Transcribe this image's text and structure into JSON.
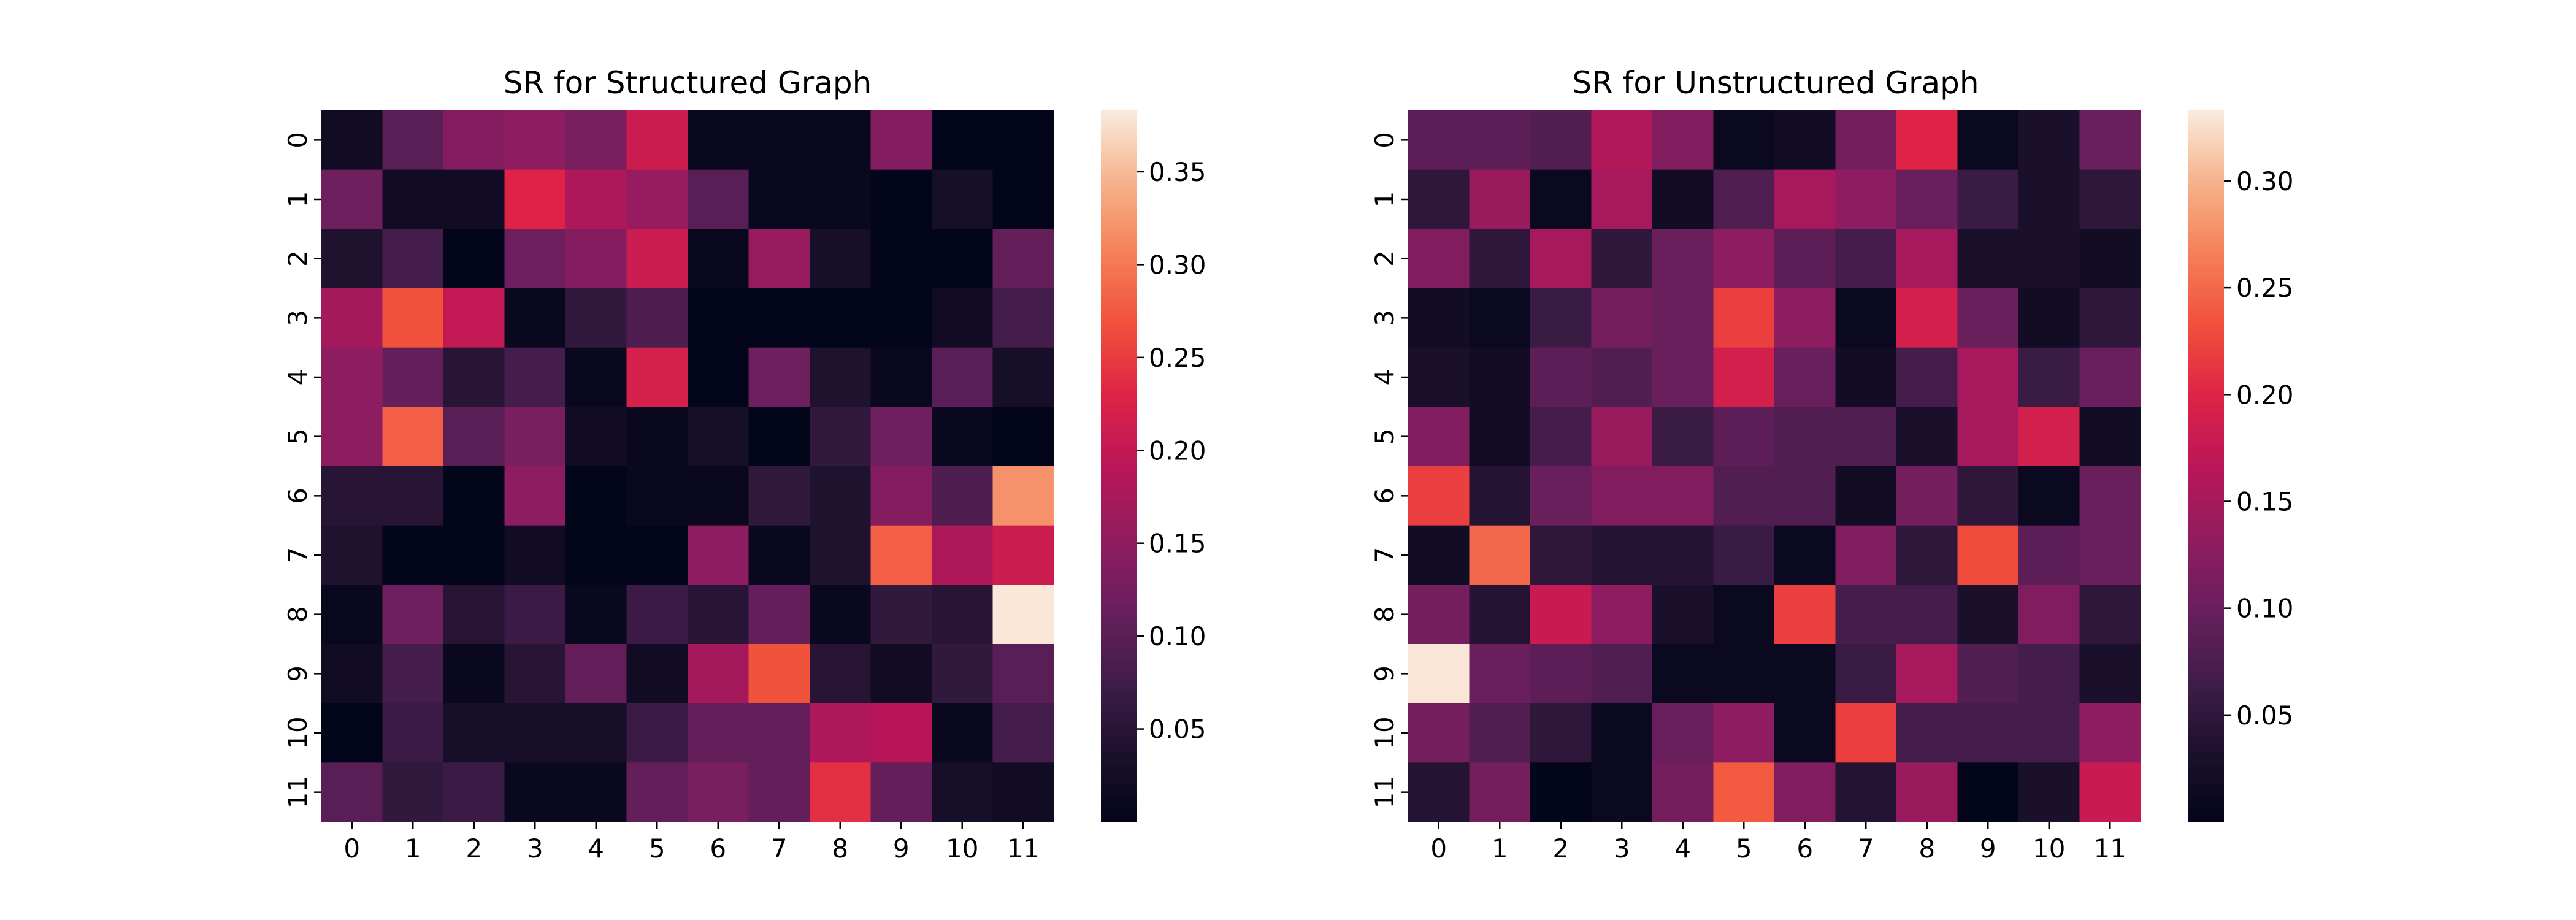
{
  "chart_data": [
    {
      "type": "heatmap",
      "title": "SR for Structured Graph",
      "xlabel": "",
      "ylabel": "",
      "x_categories": [
        "0",
        "1",
        "2",
        "3",
        "4",
        "5",
        "6",
        "7",
        "8",
        "9",
        "10",
        "11"
      ],
      "y_categories": [
        "0",
        "1",
        "2",
        "3",
        "4",
        "5",
        "6",
        "7",
        "8",
        "9",
        "10",
        "11"
      ],
      "colorbar": {
        "min": 0.0,
        "max": 0.383,
        "ticks": [
          0.05,
          0.1,
          0.15,
          0.2,
          0.25,
          0.3,
          0.35
        ],
        "tick_labels": [
          "0.05",
          "0.10",
          "0.15",
          "0.20",
          "0.25",
          "0.30",
          "0.35"
        ],
        "colormap": "rocket"
      },
      "values": [
        [
          0.02,
          0.1,
          0.14,
          0.15,
          0.13,
          0.21,
          0.01,
          0.01,
          0.01,
          0.14,
          0.0,
          0.0
        ],
        [
          0.12,
          0.02,
          0.02,
          0.23,
          0.18,
          0.16,
          0.1,
          0.01,
          0.01,
          0.0,
          0.03,
          0.0
        ],
        [
          0.04,
          0.08,
          0.0,
          0.12,
          0.14,
          0.21,
          0.01,
          0.16,
          0.03,
          0.0,
          0.0,
          0.11
        ],
        [
          0.17,
          0.27,
          0.2,
          0.01,
          0.06,
          0.09,
          0.0,
          0.0,
          0.0,
          0.0,
          0.02,
          0.08
        ],
        [
          0.15,
          0.11,
          0.05,
          0.08,
          0.01,
          0.22,
          0.0,
          0.12,
          0.04,
          0.01,
          0.1,
          0.03
        ],
        [
          0.15,
          0.28,
          0.1,
          0.13,
          0.02,
          0.01,
          0.03,
          0.0,
          0.06,
          0.12,
          0.01,
          0.0
        ],
        [
          0.05,
          0.05,
          0.0,
          0.15,
          0.0,
          0.01,
          0.01,
          0.06,
          0.04,
          0.14,
          0.09,
          0.32
        ],
        [
          0.04,
          0.0,
          0.0,
          0.02,
          0.0,
          0.0,
          0.15,
          0.01,
          0.04,
          0.28,
          0.18,
          0.21
        ],
        [
          0.01,
          0.12,
          0.05,
          0.07,
          0.01,
          0.07,
          0.05,
          0.11,
          0.01,
          0.06,
          0.05,
          0.38
        ],
        [
          0.02,
          0.08,
          0.01,
          0.05,
          0.11,
          0.02,
          0.17,
          0.27,
          0.05,
          0.02,
          0.06,
          0.1
        ],
        [
          0.0,
          0.07,
          0.03,
          0.03,
          0.03,
          0.07,
          0.11,
          0.11,
          0.18,
          0.19,
          0.01,
          0.08
        ],
        [
          0.1,
          0.06,
          0.07,
          0.01,
          0.01,
          0.11,
          0.13,
          0.11,
          0.24,
          0.11,
          0.03,
          0.02
        ]
      ]
    },
    {
      "type": "heatmap",
      "title": "SR for Unstructured Graph",
      "xlabel": "",
      "ylabel": "",
      "x_categories": [
        "0",
        "1",
        "2",
        "3",
        "4",
        "5",
        "6",
        "7",
        "8",
        "9",
        "10",
        "11"
      ],
      "y_categories": [
        "0",
        "1",
        "2",
        "3",
        "4",
        "5",
        "6",
        "7",
        "8",
        "9",
        "10",
        "11"
      ],
      "colorbar": {
        "min": 0.0,
        "max": 0.333,
        "ticks": [
          0.05,
          0.1,
          0.15,
          0.2,
          0.25,
          0.3
        ],
        "tick_labels": [
          "0.05",
          "0.10",
          "0.15",
          "0.20",
          "0.25",
          "0.30"
        ],
        "colormap": "rocket"
      },
      "values": [
        [
          0.09,
          0.09,
          0.08,
          0.16,
          0.12,
          0.01,
          0.02,
          0.11,
          0.2,
          0.01,
          0.03,
          0.1
        ],
        [
          0.05,
          0.14,
          0.01,
          0.15,
          0.02,
          0.08,
          0.15,
          0.13,
          0.1,
          0.06,
          0.03,
          0.05
        ],
        [
          0.12,
          0.05,
          0.15,
          0.05,
          0.1,
          0.13,
          0.09,
          0.07,
          0.15,
          0.03,
          0.03,
          0.02
        ],
        [
          0.02,
          0.01,
          0.06,
          0.11,
          0.1,
          0.22,
          0.13,
          0.01,
          0.19,
          0.1,
          0.02,
          0.05
        ],
        [
          0.03,
          0.02,
          0.09,
          0.08,
          0.1,
          0.19,
          0.1,
          0.02,
          0.07,
          0.15,
          0.06,
          0.1
        ],
        [
          0.12,
          0.02,
          0.07,
          0.14,
          0.06,
          0.09,
          0.08,
          0.08,
          0.03,
          0.15,
          0.19,
          0.02
        ],
        [
          0.22,
          0.04,
          0.1,
          0.12,
          0.12,
          0.08,
          0.08,
          0.02,
          0.11,
          0.05,
          0.01,
          0.1
        ],
        [
          0.02,
          0.25,
          0.05,
          0.04,
          0.04,
          0.06,
          0.01,
          0.12,
          0.05,
          0.23,
          0.09,
          0.1
        ],
        [
          0.11,
          0.04,
          0.18,
          0.13,
          0.03,
          0.01,
          0.22,
          0.07,
          0.07,
          0.03,
          0.12,
          0.05
        ],
        [
          0.33,
          0.1,
          0.09,
          0.08,
          0.01,
          0.01,
          0.01,
          0.06,
          0.15,
          0.08,
          0.07,
          0.03
        ],
        [
          0.11,
          0.08,
          0.05,
          0.01,
          0.1,
          0.13,
          0.01,
          0.22,
          0.07,
          0.07,
          0.07,
          0.13
        ],
        [
          0.04,
          0.11,
          0.0,
          0.01,
          0.11,
          0.24,
          0.12,
          0.04,
          0.14,
          0.0,
          0.03,
          0.18
        ]
      ]
    }
  ]
}
